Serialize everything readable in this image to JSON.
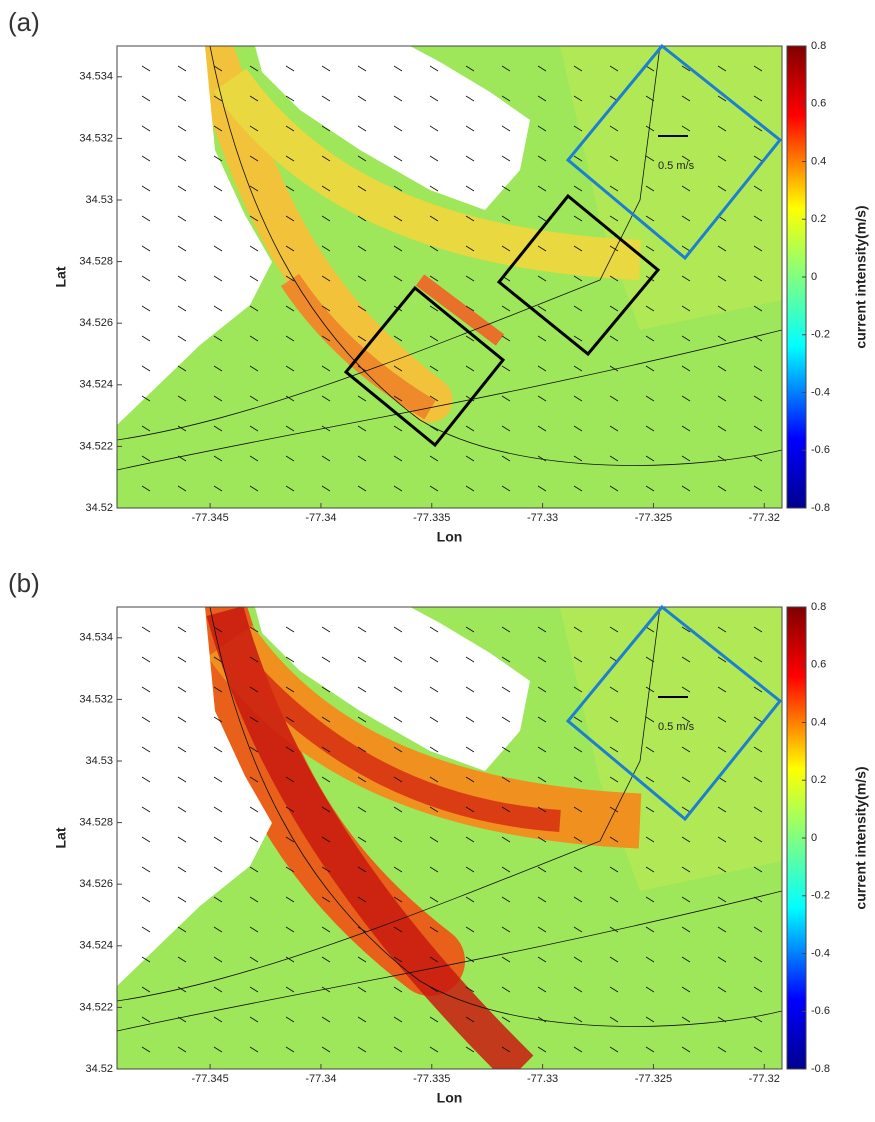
{
  "chart_data": [
    {
      "type": "map",
      "panel_label": "(a)",
      "xlabel": "Lon",
      "ylabel": "Lat",
      "xlim": [
        -77.3492,
        -77.3192
      ],
      "ylim": [
        34.52,
        34.535
      ],
      "xticks": [
        -77.345,
        -77.34,
        -77.335,
        -77.33,
        -77.325,
        -77.32
      ],
      "yticks": [
        34.52,
        34.522,
        34.524,
        34.526,
        34.528,
        34.53,
        34.532,
        34.534
      ],
      "colorbar": {
        "label": "current intensity(m/s)",
        "lim": [
          -0.8,
          0.8
        ],
        "ticks": [
          0.8,
          0.6,
          0.4,
          0.2,
          0,
          -0.2,
          -0.4,
          -0.6,
          -0.8
        ]
      },
      "annotation": "0.5 m/s"
    },
    {
      "type": "map",
      "panel_label": "(b)",
      "xlabel": "Lon",
      "ylabel": "Lat",
      "xlim": [
        -77.3492,
        -77.3192
      ],
      "ylim": [
        34.52,
        34.535
      ],
      "xticks": [
        -77.345,
        -77.34,
        -77.335,
        -77.33,
        -77.325,
        -77.32
      ],
      "yticks": [
        34.52,
        34.522,
        34.524,
        34.526,
        34.528,
        34.53,
        34.532,
        34.534
      ],
      "colorbar": {
        "label": "current intensity(m/s)",
        "lim": [
          -0.8,
          0.8
        ],
        "ticks": [
          0.8,
          0.6,
          0.4,
          0.2,
          0,
          -0.2,
          -0.4,
          -0.6,
          -0.8
        ]
      },
      "annotation": "0.5 m/s"
    }
  ]
}
